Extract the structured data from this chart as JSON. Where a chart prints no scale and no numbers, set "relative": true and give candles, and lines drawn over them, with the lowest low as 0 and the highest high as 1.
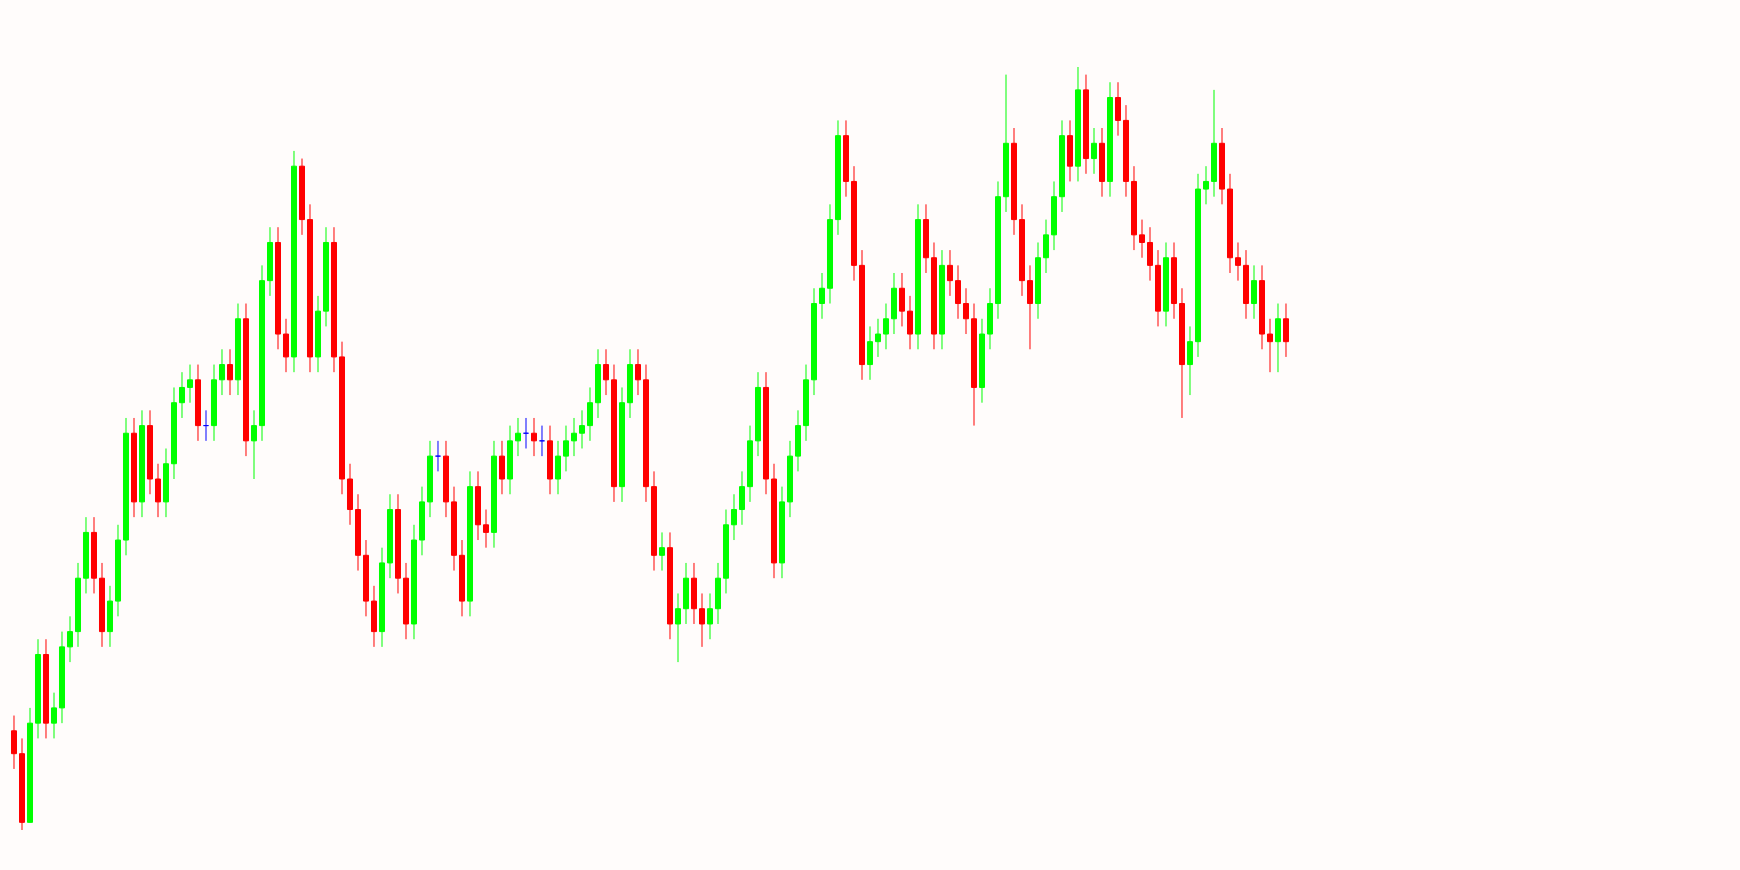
{
  "chart_data": {
    "type": "candlestick",
    "relative": true,
    "categories": [
      null,
      null,
      null,
      null,
      null,
      null,
      null,
      null,
      null,
      null,
      null,
      null,
      null,
      null,
      null,
      null,
      null,
      null,
      null,
      null,
      null,
      null,
      null,
      null,
      null,
      null,
      null,
      null,
      null,
      null,
      null,
      null,
      null,
      null,
      null,
      null,
      null,
      null,
      null,
      null,
      null,
      null,
      null,
      null,
      null,
      null,
      null,
      null,
      null,
      null,
      null,
      null,
      null,
      null,
      null,
      null,
      null,
      null,
      null,
      null,
      null,
      null,
      null,
      null,
      null,
      null,
      null,
      null,
      null,
      null,
      null,
      null,
      null,
      null,
      null,
      null,
      null,
      null,
      null,
      null,
      null,
      null,
      null,
      null,
      null,
      null,
      null,
      null,
      null,
      null,
      null,
      null,
      null,
      null,
      null,
      null,
      null,
      null,
      null,
      null,
      null,
      null,
      null,
      null,
      null,
      null,
      null,
      null,
      null,
      null,
      null,
      null,
      null,
      null,
      null,
      null,
      null,
      null,
      null,
      null,
      null,
      null,
      null,
      null,
      null,
      null,
      null,
      null,
      null,
      null,
      null,
      null,
      null,
      null,
      null,
      null,
      null,
      null,
      null,
      null,
      null,
      null,
      null,
      null,
      null,
      null,
      null,
      null,
      null,
      null,
      null,
      null,
      null,
      null,
      null,
      null,
      null,
      null,
      null,
      null
    ],
    "ohlc": [
      [
        0.13,
        0.15,
        0.08,
        0.1
      ],
      [
        0.1,
        0.12,
        0.0,
        0.01
      ],
      [
        0.01,
        0.16,
        0.01,
        0.14
      ],
      [
        0.14,
        0.25,
        0.12,
        0.23
      ],
      [
        0.23,
        0.25,
        0.12,
        0.14
      ],
      [
        0.14,
        0.18,
        0.12,
        0.16
      ],
      [
        0.16,
        0.26,
        0.14,
        0.24
      ],
      [
        0.24,
        0.28,
        0.22,
        0.26
      ],
      [
        0.26,
        0.35,
        0.24,
        0.33
      ],
      [
        0.33,
        0.41,
        0.31,
        0.39
      ],
      [
        0.39,
        0.41,
        0.31,
        0.33
      ],
      [
        0.33,
        0.35,
        0.24,
        0.26
      ],
      [
        0.26,
        0.32,
        0.24,
        0.3
      ],
      [
        0.3,
        0.4,
        0.28,
        0.38
      ],
      [
        0.38,
        0.54,
        0.36,
        0.52
      ],
      [
        0.52,
        0.54,
        0.41,
        0.43
      ],
      [
        0.43,
        0.55,
        0.41,
        0.53
      ],
      [
        0.53,
        0.55,
        0.44,
        0.46
      ],
      [
        0.46,
        0.48,
        0.41,
        0.43
      ],
      [
        0.43,
        0.5,
        0.41,
        0.48
      ],
      [
        0.48,
        0.58,
        0.46,
        0.56
      ],
      [
        0.56,
        0.6,
        0.54,
        0.58
      ],
      [
        0.58,
        0.61,
        0.56,
        0.59
      ],
      [
        0.59,
        0.61,
        0.51,
        0.53
      ],
      [
        0.53,
        0.55,
        0.51,
        0.53
      ],
      [
        0.53,
        0.61,
        0.51,
        0.59
      ],
      [
        0.59,
        0.63,
        0.57,
        0.61
      ],
      [
        0.61,
        0.63,
        0.57,
        0.59
      ],
      [
        0.59,
        0.69,
        0.57,
        0.67
      ],
      [
        0.67,
        0.69,
        0.49,
        0.51
      ],
      [
        0.51,
        0.55,
        0.46,
        0.53
      ],
      [
        0.53,
        0.74,
        0.51,
        0.72
      ],
      [
        0.72,
        0.79,
        0.7,
        0.77
      ],
      [
        0.77,
        0.79,
        0.63,
        0.65
      ],
      [
        0.65,
        0.67,
        0.6,
        0.62
      ],
      [
        0.62,
        0.89,
        0.6,
        0.87
      ],
      [
        0.87,
        0.88,
        0.78,
        0.8
      ],
      [
        0.8,
        0.82,
        0.6,
        0.62
      ],
      [
        0.62,
        0.7,
        0.6,
        0.68
      ],
      [
        0.68,
        0.79,
        0.66,
        0.77
      ],
      [
        0.77,
        0.79,
        0.6,
        0.62
      ],
      [
        0.62,
        0.64,
        0.44,
        0.46
      ],
      [
        0.46,
        0.48,
        0.4,
        0.42
      ],
      [
        0.42,
        0.44,
        0.34,
        0.36
      ],
      [
        0.36,
        0.38,
        0.28,
        0.3
      ],
      [
        0.3,
        0.32,
        0.24,
        0.26
      ],
      [
        0.26,
        0.37,
        0.24,
        0.35
      ],
      [
        0.35,
        0.44,
        0.33,
        0.42
      ],
      [
        0.42,
        0.44,
        0.31,
        0.33
      ],
      [
        0.33,
        0.35,
        0.25,
        0.27
      ],
      [
        0.27,
        0.4,
        0.25,
        0.38
      ],
      [
        0.38,
        0.45,
        0.36,
        0.43
      ],
      [
        0.43,
        0.51,
        0.41,
        0.49
      ],
      [
        0.49,
        0.51,
        0.47,
        0.49
      ],
      [
        0.49,
        0.51,
        0.41,
        0.43
      ],
      [
        0.43,
        0.45,
        0.34,
        0.36
      ],
      [
        0.36,
        0.38,
        0.28,
        0.3
      ],
      [
        0.3,
        0.47,
        0.28,
        0.45
      ],
      [
        0.45,
        0.47,
        0.38,
        0.4
      ],
      [
        0.4,
        0.42,
        0.37,
        0.39
      ],
      [
        0.39,
        0.51,
        0.37,
        0.49
      ],
      [
        0.49,
        0.51,
        0.44,
        0.46
      ],
      [
        0.46,
        0.53,
        0.44,
        0.51
      ],
      [
        0.51,
        0.54,
        0.49,
        0.52
      ],
      [
        0.52,
        0.54,
        0.5,
        0.52
      ],
      [
        0.52,
        0.54,
        0.49,
        0.51
      ],
      [
        0.51,
        0.53,
        0.49,
        0.51
      ],
      [
        0.51,
        0.53,
        0.44,
        0.46
      ],
      [
        0.46,
        0.51,
        0.44,
        0.49
      ],
      [
        0.49,
        0.53,
        0.47,
        0.51
      ],
      [
        0.51,
        0.54,
        0.49,
        0.52
      ],
      [
        0.52,
        0.55,
        0.5,
        0.53
      ],
      [
        0.53,
        0.58,
        0.51,
        0.56
      ],
      [
        0.56,
        0.63,
        0.54,
        0.61
      ],
      [
        0.61,
        0.63,
        0.57,
        0.59
      ],
      [
        0.59,
        0.61,
        0.43,
        0.45
      ],
      [
        0.45,
        0.58,
        0.43,
        0.56
      ],
      [
        0.56,
        0.63,
        0.54,
        0.61
      ],
      [
        0.61,
        0.63,
        0.57,
        0.59
      ],
      [
        0.59,
        0.61,
        0.43,
        0.45
      ],
      [
        0.45,
        0.47,
        0.34,
        0.36
      ],
      [
        0.36,
        0.39,
        0.34,
        0.37
      ],
      [
        0.37,
        0.39,
        0.25,
        0.27
      ],
      [
        0.27,
        0.31,
        0.22,
        0.29
      ],
      [
        0.29,
        0.35,
        0.27,
        0.33
      ],
      [
        0.33,
        0.35,
        0.27,
        0.29
      ],
      [
        0.29,
        0.31,
        0.24,
        0.27
      ],
      [
        0.27,
        0.31,
        0.25,
        0.29
      ],
      [
        0.29,
        0.35,
        0.27,
        0.33
      ],
      [
        0.33,
        0.42,
        0.31,
        0.4
      ],
      [
        0.4,
        0.44,
        0.38,
        0.42
      ],
      [
        0.42,
        0.47,
        0.4,
        0.45
      ],
      [
        0.45,
        0.53,
        0.43,
        0.51
      ],
      [
        0.51,
        0.6,
        0.49,
        0.58
      ],
      [
        0.58,
        0.6,
        0.44,
        0.46
      ],
      [
        0.46,
        0.48,
        0.33,
        0.35
      ],
      [
        0.35,
        0.45,
        0.33,
        0.43
      ],
      [
        0.43,
        0.51,
        0.41,
        0.49
      ],
      [
        0.49,
        0.55,
        0.47,
        0.53
      ],
      [
        0.53,
        0.61,
        0.51,
        0.59
      ],
      [
        0.59,
        0.71,
        0.57,
        0.69
      ],
      [
        0.69,
        0.73,
        0.67,
        0.71
      ],
      [
        0.71,
        0.82,
        0.69,
        0.8
      ],
      [
        0.8,
        0.93,
        0.78,
        0.91
      ],
      [
        0.91,
        0.93,
        0.83,
        0.85
      ],
      [
        0.85,
        0.87,
        0.72,
        0.74
      ],
      [
        0.74,
        0.76,
        0.59,
        0.61
      ],
      [
        0.61,
        0.66,
        0.59,
        0.64
      ],
      [
        0.64,
        0.67,
        0.62,
        0.65
      ],
      [
        0.65,
        0.69,
        0.63,
        0.67
      ],
      [
        0.67,
        0.73,
        0.65,
        0.71
      ],
      [
        0.71,
        0.73,
        0.66,
        0.68
      ],
      [
        0.68,
        0.7,
        0.63,
        0.65
      ],
      [
        0.65,
        0.82,
        0.63,
        0.8
      ],
      [
        0.8,
        0.82,
        0.73,
        0.75
      ],
      [
        0.75,
        0.77,
        0.63,
        0.65
      ],
      [
        0.65,
        0.76,
        0.63,
        0.74
      ],
      [
        0.74,
        0.76,
        0.7,
        0.72
      ],
      [
        0.72,
        0.74,
        0.67,
        0.69
      ],
      [
        0.69,
        0.71,
        0.65,
        0.67
      ],
      [
        0.67,
        0.69,
        0.53,
        0.58
      ],
      [
        0.58,
        0.67,
        0.56,
        0.65
      ],
      [
        0.65,
        0.71,
        0.63,
        0.69
      ],
      [
        0.69,
        0.85,
        0.67,
        0.83
      ],
      [
        0.83,
        0.99,
        0.81,
        0.9
      ],
      [
        0.9,
        0.92,
        0.78,
        0.8
      ],
      [
        0.8,
        0.82,
        0.7,
        0.72
      ],
      [
        0.72,
        0.74,
        0.63,
        0.69
      ],
      [
        0.69,
        0.77,
        0.67,
        0.75
      ],
      [
        0.75,
        0.8,
        0.73,
        0.78
      ],
      [
        0.78,
        0.85,
        0.76,
        0.83
      ],
      [
        0.83,
        0.93,
        0.81,
        0.91
      ],
      [
        0.91,
        0.93,
        0.85,
        0.87
      ],
      [
        0.87,
        1.0,
        0.85,
        0.97
      ],
      [
        0.97,
        0.99,
        0.86,
        0.88
      ],
      [
        0.88,
        0.92,
        0.86,
        0.9
      ],
      [
        0.9,
        0.92,
        0.83,
        0.85
      ],
      [
        0.85,
        0.98,
        0.83,
        0.96
      ],
      [
        0.96,
        0.98,
        0.91,
        0.93
      ],
      [
        0.93,
        0.95,
        0.83,
        0.85
      ],
      [
        0.85,
        0.87,
        0.76,
        0.78
      ],
      [
        0.78,
        0.8,
        0.75,
        0.77
      ],
      [
        0.77,
        0.79,
        0.72,
        0.74
      ],
      [
        0.74,
        0.76,
        0.66,
        0.68
      ],
      [
        0.68,
        0.77,
        0.66,
        0.75
      ],
      [
        0.75,
        0.77,
        0.67,
        0.69
      ],
      [
        0.69,
        0.71,
        0.54,
        0.61
      ],
      [
        0.61,
        0.66,
        0.57,
        0.64
      ],
      [
        0.64,
        0.86,
        0.62,
        0.84
      ],
      [
        0.84,
        0.87,
        0.82,
        0.85
      ],
      [
        0.85,
        0.97,
        0.83,
        0.9
      ],
      [
        0.9,
        0.92,
        0.82,
        0.84
      ],
      [
        0.84,
        0.86,
        0.73,
        0.75
      ],
      [
        0.75,
        0.77,
        0.72,
        0.74
      ],
      [
        0.74,
        0.76,
        0.67,
        0.69
      ],
      [
        0.69,
        0.74,
        0.67,
        0.72
      ],
      [
        0.72,
        0.74,
        0.63,
        0.65
      ],
      [
        0.65,
        0.67,
        0.6,
        0.64
      ],
      [
        0.64,
        0.69,
        0.6,
        0.67
      ],
      [
        0.67,
        0.69,
        0.62,
        0.64
      ]
    ],
    "colors": [
      "#ff0000",
      "#ff0000",
      "#00ff00",
      "#00ff00",
      "#ff0000",
      "#00ff00",
      "#00ff00",
      "#00ff00",
      "#00ff00",
      "#00ff00",
      "#ff0000",
      "#ff0000",
      "#00ff00",
      "#00ff00",
      "#00ff00",
      "#ff0000",
      "#00ff00",
      "#ff0000",
      "#ff0000",
      "#00ff00",
      "#00ff00",
      "#00ff00",
      "#00ff00",
      "#ff0000",
      "#0000ff",
      "#00ff00",
      "#00ff00",
      "#ff0000",
      "#00ff00",
      "#ff0000",
      "#00ff00",
      "#00ff00",
      "#00ff00",
      "#ff0000",
      "#ff0000",
      "#00ff00",
      "#ff0000",
      "#ff0000",
      "#00ff00",
      "#00ff00",
      "#ff0000",
      "#ff0000",
      "#ff0000",
      "#ff0000",
      "#ff0000",
      "#ff0000",
      "#00ff00",
      "#00ff00",
      "#ff0000",
      "#ff0000",
      "#00ff00",
      "#00ff00",
      "#00ff00",
      "#0000ff",
      "#ff0000",
      "#ff0000",
      "#ff0000",
      "#00ff00",
      "#ff0000",
      "#ff0000",
      "#00ff00",
      "#ff0000",
      "#00ff00",
      "#00ff00",
      "#0000ff",
      "#ff0000",
      "#0000ff",
      "#ff0000",
      "#00ff00",
      "#00ff00",
      "#00ff00",
      "#00ff00",
      "#00ff00",
      "#00ff00",
      "#ff0000",
      "#ff0000",
      "#00ff00",
      "#00ff00",
      "#ff0000",
      "#ff0000",
      "#ff0000",
      "#00ff00",
      "#ff0000",
      "#00ff00",
      "#00ff00",
      "#ff0000",
      "#ff0000",
      "#00ff00",
      "#00ff00",
      "#00ff00",
      "#00ff00",
      "#00ff00",
      "#00ff00",
      "#00ff00",
      "#ff0000",
      "#ff0000",
      "#00ff00",
      "#00ff00",
      "#00ff00",
      "#00ff00",
      "#00ff00",
      "#00ff00",
      "#00ff00",
      "#00ff00",
      "#ff0000",
      "#ff0000",
      "#ff0000",
      "#00ff00",
      "#00ff00",
      "#00ff00",
      "#00ff00",
      "#ff0000",
      "#ff0000",
      "#00ff00",
      "#ff0000",
      "#ff0000",
      "#00ff00",
      "#ff0000",
      "#ff0000",
      "#ff0000",
      "#ff0000",
      "#00ff00",
      "#00ff00",
      "#00ff00",
      "#00ff00",
      "#ff0000",
      "#ff0000",
      "#ff0000",
      "#00ff00",
      "#00ff00",
      "#00ff00",
      "#00ff00",
      "#ff0000",
      "#00ff00",
      "#ff0000",
      "#00ff00",
      "#ff0000",
      "#00ff00",
      "#ff0000",
      "#ff0000",
      "#ff0000",
      "#ff0000",
      "#ff0000",
      "#ff0000",
      "#00ff00",
      "#ff0000",
      "#ff0000",
      "#00ff00",
      "#00ff00",
      "#00ff00",
      "#00ff00",
      "#ff0000",
      "#ff0000",
      "#ff0000",
      "#ff0000",
      "#00ff00",
      "#ff0000",
      "#ff0000",
      "#00ff00",
      "#ff0000"
    ]
  }
}
